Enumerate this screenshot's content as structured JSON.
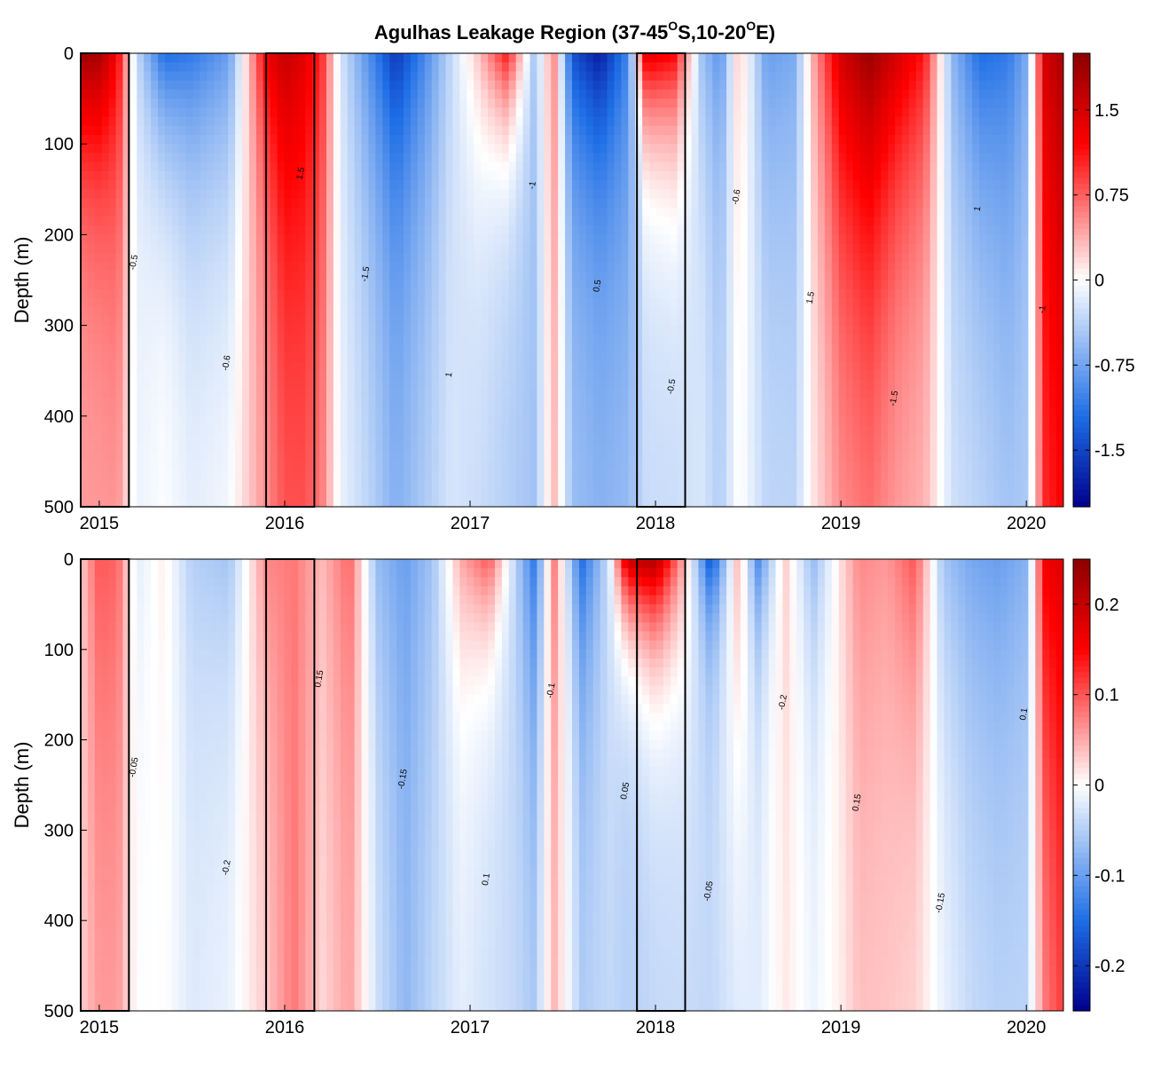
{
  "title": {
    "main": "Agulhas Leakage Region (37-45",
    "sup1": "O",
    "mid": "S,10-20",
    "sup2": "O",
    "end": "E)"
  },
  "chart_data": [
    {
      "type": "heatmap",
      "panel": "top",
      "title": "Agulhas Leakage Region (37-45°S,10-20°E)",
      "xlabel": "",
      "ylabel": "Depth (m)",
      "x_ticks": [
        "2015",
        "2016",
        "2017",
        "2018",
        "2019",
        "2020"
      ],
      "x_tick_values": [
        2015.0,
        2016.0,
        2017.0,
        2018.0,
        2019.0,
        2020.0
      ],
      "xlim": [
        2014.9,
        2020.2
      ],
      "y_ticks": [
        "0",
        "100",
        "200",
        "300",
        "400",
        "500"
      ],
      "ylim": [
        0,
        500
      ],
      "colorbar": {
        "ticks": [
          "1.5",
          "0.75",
          "0",
          "-0.75",
          "-1.5"
        ],
        "values": [
          1.5,
          0.75,
          0,
          -0.75,
          -1.5
        ],
        "range": [
          -2.0,
          2.0
        ]
      },
      "contour_labels": [
        "0.5",
        "1",
        "1.5",
        "-0.5",
        "-1",
        "-1.5",
        "-0.6"
      ],
      "boxes": [
        [
          2014.9,
          2015.16
        ],
        [
          2015.9,
          2016.16
        ],
        [
          2017.9,
          2018.16
        ]
      ],
      "columns": [
        {
          "x": 2014.9,
          "amp": 1.9,
          "decay": 120,
          "floor": 0.45
        },
        {
          "x": 2015.0,
          "amp": 1.8,
          "decay": 140,
          "floor": 0.45
        },
        {
          "x": 2015.1,
          "amp": 1.2,
          "decay": 250,
          "floor": 0.4
        },
        {
          "x": 2015.2,
          "amp": -0.3,
          "decay": 120,
          "floor": -0.1
        },
        {
          "x": 2015.35,
          "amp": -1.2,
          "decay": 120,
          "floor": 0.0
        },
        {
          "x": 2015.5,
          "amp": -1.1,
          "decay": 160,
          "floor": -0.1
        },
        {
          "x": 2015.7,
          "amp": -0.8,
          "decay": 200,
          "floor": 0.0
        },
        {
          "x": 2015.9,
          "amp": 1.3,
          "decay": 160,
          "floor": 0.5
        },
        {
          "x": 2016.0,
          "amp": 1.6,
          "decay": 250,
          "floor": 0.7
        },
        {
          "x": 2016.1,
          "amp": 1.4,
          "decay": 300,
          "floor": 0.7
        },
        {
          "x": 2016.2,
          "amp": 1.0,
          "decay": 350,
          "floor": 0.5
        },
        {
          "x": 2016.3,
          "amp": -0.2,
          "decay": 200,
          "floor": -0.1
        },
        {
          "x": 2016.45,
          "amp": -0.9,
          "decay": 200,
          "floor": -0.3
        },
        {
          "x": 2016.6,
          "amp": -1.6,
          "decay": 180,
          "floor": -0.6
        },
        {
          "x": 2016.75,
          "amp": -1.0,
          "decay": 200,
          "floor": -0.4
        },
        {
          "x": 2016.9,
          "amp": -0.3,
          "decay": 250,
          "floor": -0.2
        },
        {
          "x": 2017.05,
          "amp": 0.3,
          "decay": 150,
          "floor": -0.3
        },
        {
          "x": 2017.2,
          "amp": 1.1,
          "decay": 100,
          "floor": -0.4
        },
        {
          "x": 2017.35,
          "amp": -0.5,
          "decay": 250,
          "floor": -0.5
        },
        {
          "x": 2017.45,
          "amp": 0.6,
          "decay": 250,
          "floor": 0.3
        },
        {
          "x": 2017.55,
          "amp": -1.4,
          "decay": 150,
          "floor": -0.5
        },
        {
          "x": 2017.7,
          "amp": -1.8,
          "decay": 150,
          "floor": -0.6
        },
        {
          "x": 2017.85,
          "amp": -1.0,
          "decay": 250,
          "floor": -0.5
        },
        {
          "x": 2017.95,
          "amp": 1.4,
          "decay": 100,
          "floor": -0.3
        },
        {
          "x": 2018.1,
          "amp": 1.2,
          "decay": 120,
          "floor": -0.3
        },
        {
          "x": 2018.25,
          "amp": -0.5,
          "decay": 150,
          "floor": -0.2
        },
        {
          "x": 2018.35,
          "amp": -0.9,
          "decay": 150,
          "floor": -0.4
        },
        {
          "x": 2018.45,
          "amp": 0.3,
          "decay": 200,
          "floor": 0.0
        },
        {
          "x": 2018.6,
          "amp": -0.8,
          "decay": 200,
          "floor": -0.3
        },
        {
          "x": 2018.75,
          "amp": -0.7,
          "decay": 250,
          "floor": -0.3
        },
        {
          "x": 2018.85,
          "amp": 0.4,
          "decay": 200,
          "floor": 0.1
        },
        {
          "x": 2019.0,
          "amp": 1.5,
          "decay": 250,
          "floor": 0.4
        },
        {
          "x": 2019.15,
          "amp": 1.9,
          "decay": 250,
          "floor": 0.5
        },
        {
          "x": 2019.3,
          "amp": 1.5,
          "decay": 200,
          "floor": 0.4
        },
        {
          "x": 2019.45,
          "amp": 1.1,
          "decay": 200,
          "floor": 0.3
        },
        {
          "x": 2019.6,
          "amp": -0.6,
          "decay": 250,
          "floor": -0.2
        },
        {
          "x": 2019.75,
          "amp": -1.2,
          "decay": 200,
          "floor": -0.3
        },
        {
          "x": 2019.9,
          "amp": -1.1,
          "decay": 250,
          "floor": -0.4
        },
        {
          "x": 2020.0,
          "amp": -0.7,
          "decay": 250,
          "floor": -0.4
        },
        {
          "x": 2020.1,
          "amp": 1.5,
          "decay": 300,
          "floor": 0.9
        },
        {
          "x": 2020.2,
          "amp": 1.8,
          "decay": 400,
          "floor": 1.0
        }
      ]
    },
    {
      "type": "heatmap",
      "panel": "bottom",
      "title": "",
      "xlabel": "",
      "ylabel": "Depth (m)",
      "x_ticks": [
        "2015",
        "2016",
        "2017",
        "2018",
        "2019",
        "2020"
      ],
      "x_tick_values": [
        2015.0,
        2016.0,
        2017.0,
        2018.0,
        2019.0,
        2020.0
      ],
      "xlim": [
        2014.9,
        2020.2
      ],
      "y_ticks": [
        "0",
        "100",
        "200",
        "300",
        "400",
        "500"
      ],
      "ylim": [
        0,
        500
      ],
      "colorbar": {
        "ticks": [
          "0.2",
          "0.1",
          "0",
          "-0.1",
          "-0.2"
        ],
        "values": [
          0.2,
          0.1,
          0,
          -0.1,
          -0.2
        ],
        "range": [
          -0.25,
          0.25
        ]
      },
      "contour_labels": [
        "0.05",
        "0.1",
        "0.15",
        "-0.05",
        "-0.1",
        "-0.15",
        "-0.2"
      ],
      "boxes": [
        [
          2014.9,
          2015.16
        ],
        [
          2015.9,
          2016.16
        ],
        [
          2017.9,
          2018.16
        ]
      ],
      "columns": [
        {
          "x": 2014.9,
          "amp": 0.03,
          "decay": 150,
          "floor": 0.03
        },
        {
          "x": 2015.0,
          "amp": 0.1,
          "decay": 300,
          "floor": 0.05
        },
        {
          "x": 2015.1,
          "amp": 0.09,
          "decay": 350,
          "floor": 0.05
        },
        {
          "x": 2015.2,
          "amp": -0.02,
          "decay": 200,
          "floor": 0.0
        },
        {
          "x": 2015.35,
          "amp": 0.01,
          "decay": 200,
          "floor": 0.0
        },
        {
          "x": 2015.5,
          "amp": -0.05,
          "decay": 200,
          "floor": -0.02
        },
        {
          "x": 2015.7,
          "amp": -0.06,
          "decay": 200,
          "floor": -0.01
        },
        {
          "x": 2015.9,
          "amp": 0.07,
          "decay": 200,
          "floor": 0.03
        },
        {
          "x": 2016.05,
          "amp": 0.08,
          "decay": 400,
          "floor": 0.08
        },
        {
          "x": 2016.2,
          "amp": 0.04,
          "decay": 300,
          "floor": 0.02
        },
        {
          "x": 2016.35,
          "amp": 0.09,
          "decay": 250,
          "floor": 0.05
        },
        {
          "x": 2016.5,
          "amp": -0.07,
          "decay": 200,
          "floor": -0.03
        },
        {
          "x": 2016.65,
          "amp": -0.1,
          "decay": 250,
          "floor": -0.07
        },
        {
          "x": 2016.8,
          "amp": -0.06,
          "decay": 250,
          "floor": -0.04
        },
        {
          "x": 2016.95,
          "amp": 0.05,
          "decay": 150,
          "floor": -0.02
        },
        {
          "x": 2017.1,
          "amp": 0.1,
          "decay": 100,
          "floor": -0.03
        },
        {
          "x": 2017.25,
          "amp": -0.05,
          "decay": 200,
          "floor": -0.04
        },
        {
          "x": 2017.35,
          "amp": -0.14,
          "decay": 200,
          "floor": -0.05
        },
        {
          "x": 2017.45,
          "amp": 0.08,
          "decay": 200,
          "floor": 0.04
        },
        {
          "x": 2017.6,
          "amp": -0.15,
          "decay": 150,
          "floor": -0.05
        },
        {
          "x": 2017.75,
          "amp": -0.03,
          "decay": 200,
          "floor": -0.04
        },
        {
          "x": 2017.85,
          "amp": 0.2,
          "decay": 80,
          "floor": -0.05
        },
        {
          "x": 2018.0,
          "amp": 0.22,
          "decay": 100,
          "floor": -0.04
        },
        {
          "x": 2018.15,
          "amp": 0.05,
          "decay": 150,
          "floor": -0.04
        },
        {
          "x": 2018.3,
          "amp": -0.18,
          "decay": 80,
          "floor": -0.04
        },
        {
          "x": 2018.45,
          "amp": 0.05,
          "decay": 250,
          "floor": -0.03
        },
        {
          "x": 2018.55,
          "amp": -0.12,
          "decay": 100,
          "floor": -0.02
        },
        {
          "x": 2018.7,
          "amp": 0.03,
          "decay": 250,
          "floor": 0.01
        },
        {
          "x": 2018.85,
          "amp": -0.07,
          "decay": 150,
          "floor": -0.01
        },
        {
          "x": 2019.0,
          "amp": 0.02,
          "decay": 200,
          "floor": 0.01
        },
        {
          "x": 2019.1,
          "amp": 0.07,
          "decay": 300,
          "floor": 0.03
        },
        {
          "x": 2019.25,
          "amp": 0.06,
          "decay": 250,
          "floor": 0.03
        },
        {
          "x": 2019.4,
          "amp": 0.1,
          "decay": 200,
          "floor": 0.02
        },
        {
          "x": 2019.55,
          "amp": -0.06,
          "decay": 200,
          "floor": -0.01
        },
        {
          "x": 2019.7,
          "amp": -0.09,
          "decay": 250,
          "floor": -0.03
        },
        {
          "x": 2019.85,
          "amp": -0.1,
          "decay": 250,
          "floor": -0.04
        },
        {
          "x": 2020.0,
          "amp": -0.08,
          "decay": 250,
          "floor": -0.04
        },
        {
          "x": 2020.1,
          "amp": 0.16,
          "decay": 300,
          "floor": 0.06
        },
        {
          "x": 2020.2,
          "amp": 0.18,
          "decay": 400,
          "floor": 0.09
        }
      ]
    }
  ]
}
